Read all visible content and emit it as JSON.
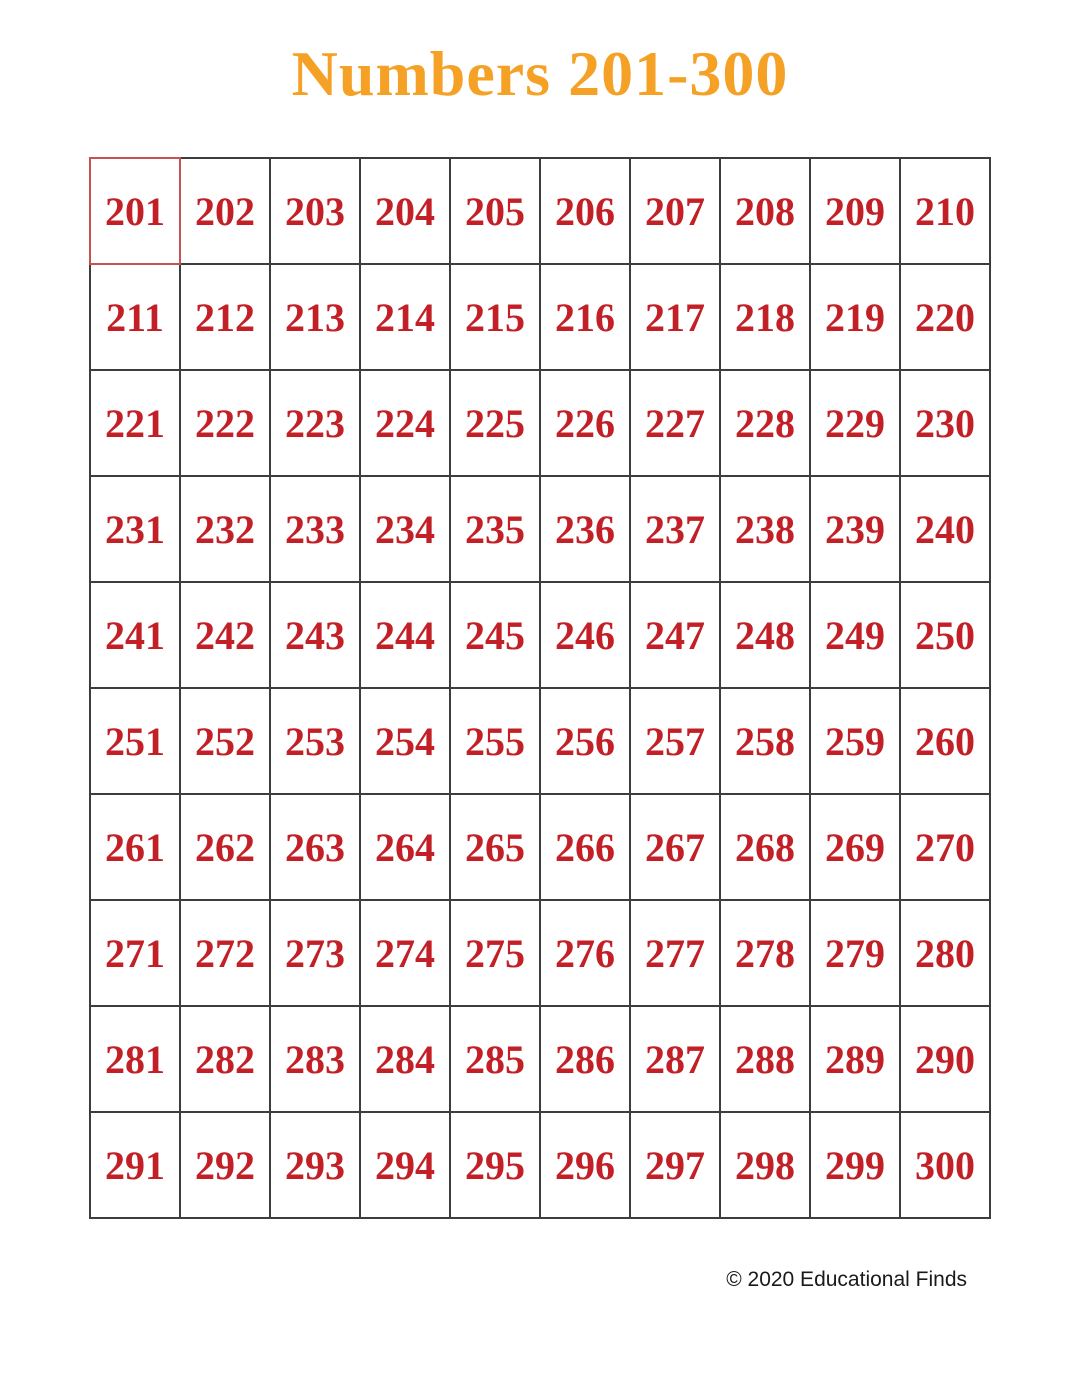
{
  "page": {
    "title": "Numbers 201-300",
    "copyright": "© 2020 Educational Finds"
  },
  "colors": {
    "title": "#f5a125",
    "number": "#c22026",
    "grid_border": "#3d3d3d",
    "highlight_border": "#c75252",
    "text": "#1a1a1a",
    "background": "#ffffff"
  },
  "grid": {
    "columns": 10,
    "rows_count": 10,
    "highlighted_number": 201,
    "rows": [
      [
        201,
        202,
        203,
        204,
        205,
        206,
        207,
        208,
        209,
        210
      ],
      [
        211,
        212,
        213,
        214,
        215,
        216,
        217,
        218,
        219,
        220
      ],
      [
        221,
        222,
        223,
        224,
        225,
        226,
        227,
        228,
        229,
        230
      ],
      [
        231,
        232,
        233,
        234,
        235,
        236,
        237,
        238,
        239,
        240
      ],
      [
        241,
        242,
        243,
        244,
        245,
        246,
        247,
        248,
        249,
        250
      ],
      [
        251,
        252,
        253,
        254,
        255,
        256,
        257,
        258,
        259,
        260
      ],
      [
        261,
        262,
        263,
        264,
        265,
        266,
        267,
        268,
        269,
        270
      ],
      [
        271,
        272,
        273,
        274,
        275,
        276,
        277,
        278,
        279,
        280
      ],
      [
        281,
        282,
        283,
        284,
        285,
        286,
        287,
        288,
        289,
        290
      ],
      [
        291,
        292,
        293,
        294,
        295,
        296,
        297,
        298,
        299,
        300
      ]
    ]
  }
}
